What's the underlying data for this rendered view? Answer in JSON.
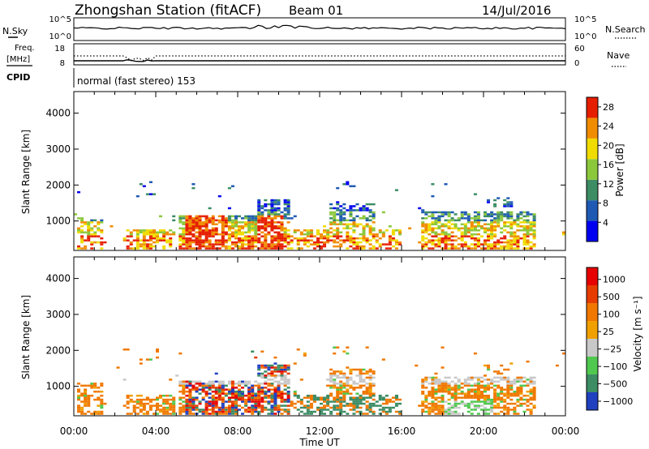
{
  "header": {
    "station": "Zhongshan Station (fitACF)",
    "beam": "Beam 01",
    "date": "14/Jul/2016"
  },
  "top_panels": {
    "nsky_label": "N.Sky",
    "nsky_ticks": [
      "10^5",
      "10^0"
    ],
    "nsearch_label": "N.Search",
    "nsearch_ticks": [
      "10^5",
      "10^0"
    ],
    "freq_label": "Freq.",
    "freq_unit": "[MHz]",
    "freq_ticks": [
      "18",
      "8"
    ],
    "nave_label": "Nave",
    "nave_ticks": [
      "60",
      "0"
    ],
    "cpid_label": "CPID",
    "cpid_text": "normal (fast stereo) 153"
  },
  "chart_data": [
    {
      "type": "heatmap",
      "name": "power",
      "ylabel": "Slant Range [km]",
      "ylim": [
        180,
        4600
      ],
      "yticks": [
        "1000",
        "2000",
        "3000",
        "4000"
      ],
      "xticks": [
        "00:00",
        "04:00",
        "08:00",
        "12:00",
        "16:00",
        "20:00",
        "00:00"
      ],
      "xlim_hours": [
        0,
        24
      ],
      "colorbar": {
        "label": "Power [dB]",
        "ticks": [
          "4",
          "8",
          "12",
          "16",
          "20",
          "24",
          "28"
        ],
        "range": [
          0,
          30
        ],
        "colors": [
          "#0000f0",
          "#1e5ab4",
          "#3c8c64",
          "#8cc83c",
          "#f0dc00",
          "#f08c00",
          "#e61e00"
        ]
      }
    },
    {
      "type": "heatmap",
      "name": "velocity",
      "ylabel": "Slant Range [km]",
      "ylim": [
        180,
        4600
      ],
      "yticks": [
        "1000",
        "2000",
        "3000",
        "4000"
      ],
      "xticks": [
        "00:00",
        "04:00",
        "08:00",
        "12:00",
        "16:00",
        "20:00",
        "00:00"
      ],
      "xlim_hours": [
        0,
        24
      ],
      "xlabel": "Time UT",
      "colorbar": {
        "label": "Velocity [m s⁻¹]",
        "ticks": [
          "1000",
          "500",
          "100",
          "25",
          "−25",
          "−100",
          "−500",
          "−1000"
        ],
        "colors": [
          "#2040c0",
          "#3c8c64",
          "#50c850",
          "#c8c8c8",
          "#f0a000",
          "#f07800",
          "#e63c00",
          "#e60000"
        ]
      }
    }
  ]
}
